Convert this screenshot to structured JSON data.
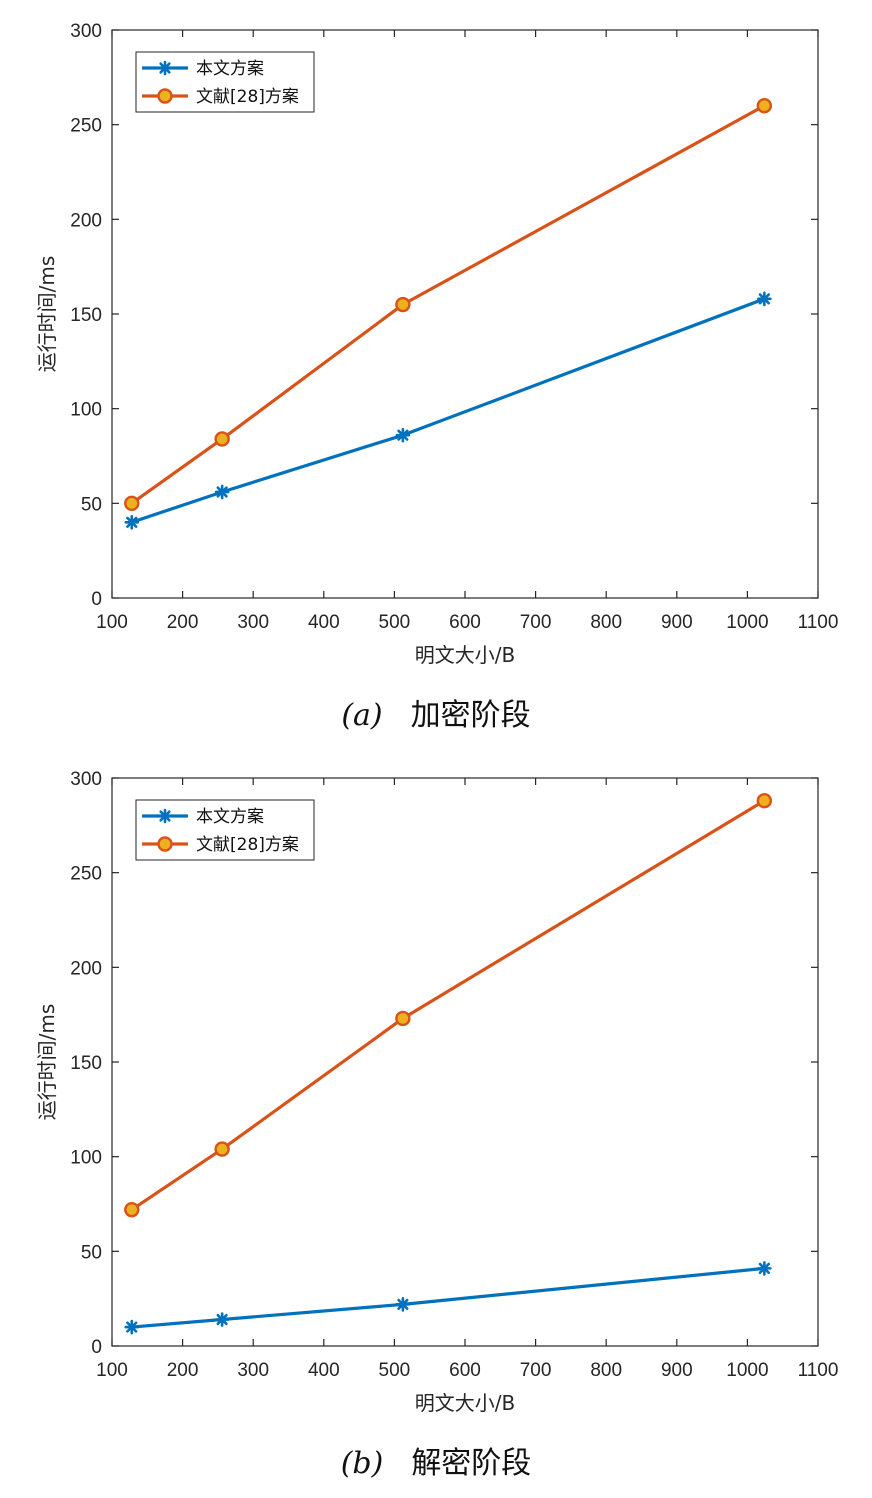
{
  "chart_data": [
    {
      "type": "line",
      "xlabel": "明文大小/B",
      "ylabel": "运行时间/ms",
      "xlim": [
        100,
        1100
      ],
      "ylim": [
        0,
        300
      ],
      "xticks": [
        100,
        200,
        300,
        400,
        500,
        600,
        700,
        800,
        900,
        1000,
        1100
      ],
      "yticks": [
        0,
        50,
        100,
        150,
        200,
        250,
        300
      ],
      "grid": false,
      "legend_position": "top-left",
      "caption_tag": "(a)",
      "caption_text": "加密阶段",
      "series": [
        {
          "name": "本文方案",
          "color": "#0072BD",
          "marker": "asterisk",
          "x": [
            128,
            256,
            512,
            1024
          ],
          "y": [
            40,
            56,
            86,
            158
          ]
        },
        {
          "name": "文献[28]方案",
          "color": "#D95319",
          "marker": "circle",
          "marker_fill": "#EDB120",
          "x": [
            128,
            256,
            512,
            1024
          ],
          "y": [
            50,
            84,
            155,
            260
          ]
        }
      ]
    },
    {
      "type": "line",
      "xlabel": "明文大小/B",
      "ylabel": "运行时间/ms",
      "xlim": [
        100,
        1100
      ],
      "ylim": [
        0,
        300
      ],
      "xticks": [
        100,
        200,
        300,
        400,
        500,
        600,
        700,
        800,
        900,
        1000,
        1100
      ],
      "yticks": [
        0,
        50,
        100,
        150,
        200,
        250,
        300
      ],
      "grid": false,
      "legend_position": "top-left",
      "caption_tag": "(b)",
      "caption_text": "解密阶段",
      "series": [
        {
          "name": "本文方案",
          "color": "#0072BD",
          "marker": "asterisk",
          "x": [
            128,
            256,
            512,
            1024
          ],
          "y": [
            10,
            14,
            22,
            41
          ]
        },
        {
          "name": "文献[28]方案",
          "color": "#D95319",
          "marker": "circle",
          "marker_fill": "#EDB120",
          "x": [
            128,
            256,
            512,
            1024
          ],
          "y": [
            72,
            104,
            173,
            288
          ]
        }
      ]
    }
  ]
}
